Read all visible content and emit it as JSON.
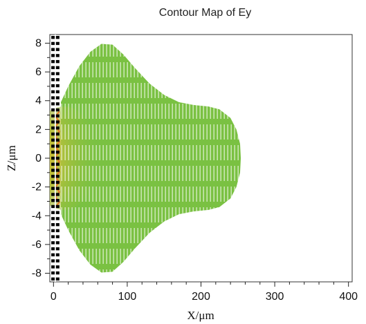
{
  "chart_data": {
    "type": "heatmap",
    "title": "Contour Map of Ey",
    "xlabel": "X/μm",
    "ylabel": "Z/μm",
    "xlim": [
      -5,
      405
    ],
    "ylim": [
      -8.6,
      8.6
    ],
    "x_ticks": [
      0,
      100,
      200,
      300,
      400
    ],
    "y_ticks": [
      8,
      6,
      4,
      2,
      0,
      -2,
      -4,
      -6,
      -8
    ],
    "grid": false,
    "colors": {
      "field_outer": "#7ac142",
      "field_mid": "#96c23f",
      "field_inner": "#c9b52a",
      "field_peak": "#e67422",
      "grating": "#000000",
      "stripe": "#ffffff"
    },
    "field_envelope": [
      {
        "x": 10,
        "z": 3.9
      },
      {
        "x": 20,
        "z": 5.0
      },
      {
        "x": 35,
        "z": 6.4
      },
      {
        "x": 50,
        "z": 7.4
      },
      {
        "x": 65,
        "z": 7.95
      },
      {
        "x": 80,
        "z": 7.9
      },
      {
        "x": 95,
        "z": 7.2
      },
      {
        "x": 110,
        "z": 6.3
      },
      {
        "x": 130,
        "z": 5.2
      },
      {
        "x": 150,
        "z": 4.4
      },
      {
        "x": 170,
        "z": 3.9
      },
      {
        "x": 190,
        "z": 3.7
      },
      {
        "x": 210,
        "z": 3.6
      },
      {
        "x": 225,
        "z": 3.4
      },
      {
        "x": 240,
        "z": 2.8
      },
      {
        "x": 248,
        "z": 2.0
      },
      {
        "x": 253,
        "z": 1.0
      },
      {
        "x": 254,
        "z": 0.0
      }
    ]
  }
}
